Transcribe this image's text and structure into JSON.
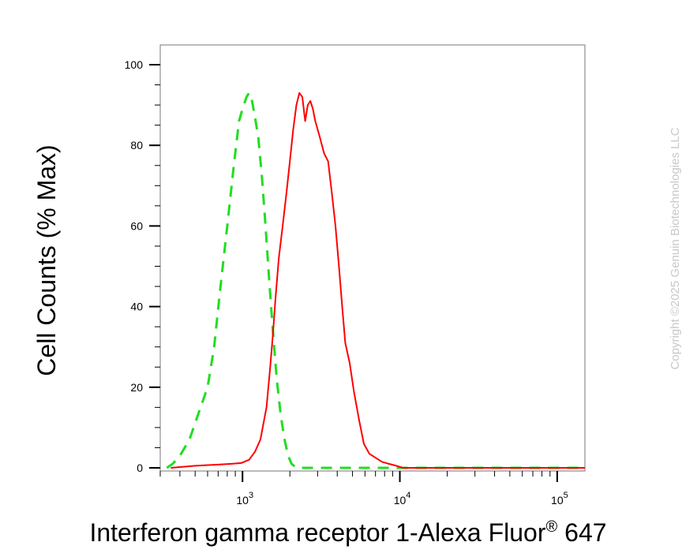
{
  "chart_data": {
    "type": "line",
    "title": "",
    "xlabel": "Interferon gamma receptor 1-Alexa Fluor",
    "xlabel_mark": "®",
    "xlabel_suffix": " 647",
    "ylabel": "Cell Counts (% Max)",
    "xscale": "log",
    "xlim": [
      300,
      150000
    ],
    "ylim": [
      0,
      100
    ],
    "y_ticks": [
      {
        "value": 0,
        "label": "0"
      },
      {
        "value": 20,
        "label": "20"
      },
      {
        "value": 40,
        "label": "40"
      },
      {
        "value": 60,
        "label": "60"
      },
      {
        "value": 80,
        "label": "80"
      },
      {
        "value": 100,
        "label": "100"
      }
    ],
    "x_ticks": [
      {
        "value": 1000,
        "base": "10",
        "exp": "3"
      },
      {
        "value": 10000,
        "base": "10",
        "exp": "4"
      },
      {
        "value": 100000,
        "base": "10",
        "exp": "5"
      }
    ],
    "grid": false,
    "series": [
      {
        "style": "dashed",
        "color": "#22dd22",
        "points": [
          [
            330,
            0
          ],
          [
            360,
            1
          ],
          [
            400,
            3
          ],
          [
            460,
            7
          ],
          [
            530,
            14
          ],
          [
            600,
            20
          ],
          [
            660,
            30
          ],
          [
            720,
            44
          ],
          [
            800,
            60
          ],
          [
            880,
            75
          ],
          [
            950,
            86
          ],
          [
            1000,
            89
          ],
          [
            1060,
            92
          ],
          [
            1100,
            93
          ],
          [
            1150,
            91
          ],
          [
            1200,
            87
          ],
          [
            1260,
            82
          ],
          [
            1330,
            72
          ],
          [
            1400,
            60
          ],
          [
            1480,
            46
          ],
          [
            1560,
            34
          ],
          [
            1650,
            22
          ],
          [
            1750,
            13
          ],
          [
            1850,
            7
          ],
          [
            1950,
            3
          ],
          [
            2050,
            1
          ],
          [
            2200,
            0
          ],
          [
            3000,
            0
          ],
          [
            6000,
            0
          ],
          [
            20000,
            0
          ],
          [
            150000,
            0
          ]
        ]
      },
      {
        "style": "solid",
        "color": "#ff0000",
        "points": [
          [
            350,
            0
          ],
          [
            500,
            0.5
          ],
          [
            700,
            0.8
          ],
          [
            850,
            1
          ],
          [
            980,
            1.2
          ],
          [
            1100,
            2
          ],
          [
            1200,
            4
          ],
          [
            1300,
            7
          ],
          [
            1420,
            15
          ],
          [
            1500,
            25
          ],
          [
            1560,
            33
          ],
          [
            1620,
            42
          ],
          [
            1700,
            52
          ],
          [
            1800,
            60
          ],
          [
            1900,
            68
          ],
          [
            2000,
            76
          ],
          [
            2100,
            84
          ],
          [
            2200,
            90
          ],
          [
            2300,
            93
          ],
          [
            2400,
            92
          ],
          [
            2500,
            86
          ],
          [
            2600,
            90
          ],
          [
            2700,
            91
          ],
          [
            2800,
            89
          ],
          [
            2900,
            86
          ],
          [
            3100,
            82
          ],
          [
            3300,
            78
          ],
          [
            3500,
            76
          ],
          [
            3700,
            68
          ],
          [
            3900,
            60
          ],
          [
            4100,
            50
          ],
          [
            4300,
            40
          ],
          [
            4500,
            31
          ],
          [
            4800,
            26
          ],
          [
            5100,
            19
          ],
          [
            5500,
            12
          ],
          [
            5900,
            6
          ],
          [
            6400,
            3.5
          ],
          [
            7000,
            2.5
          ],
          [
            7700,
            1.5
          ],
          [
            8500,
            1
          ],
          [
            9500,
            0.5
          ],
          [
            10500,
            0
          ],
          [
            150000,
            0
          ]
        ]
      }
    ]
  },
  "watermark": "Copyright ©2025 Genuin Biotechnologies LLC"
}
